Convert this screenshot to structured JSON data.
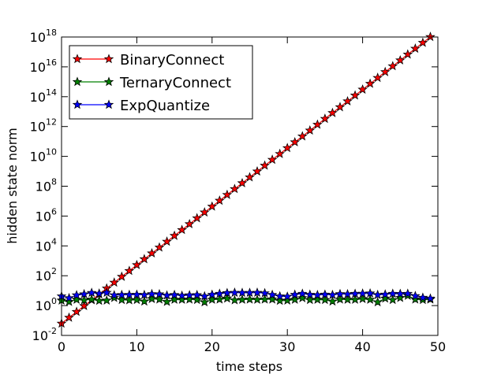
{
  "chart_data": {
    "type": "line",
    "x_label": "time steps",
    "y_label": "hidden state norm",
    "x": [
      0,
      1,
      2,
      3,
      4,
      5,
      6,
      7,
      8,
      9,
      10,
      11,
      12,
      13,
      14,
      15,
      16,
      17,
      18,
      19,
      20,
      21,
      22,
      23,
      24,
      25,
      26,
      27,
      28,
      29,
      30,
      31,
      32,
      33,
      34,
      35,
      36,
      37,
      38,
      39,
      40,
      41,
      42,
      43,
      44,
      45,
      46,
      47,
      48,
      49
    ],
    "series": [
      {
        "name": "BinaryConnect",
        "color": "#ff0000",
        "values": [
          0.063,
          0.156,
          0.384,
          0.946,
          2.33,
          5.75,
          14.2,
          35.0,
          86.3,
          213,
          525,
          1294,
          3192,
          7870,
          19400,
          47900,
          118000,
          291000,
          718000,
          1770000,
          4370000,
          10800000,
          26500000,
          65500000,
          161000000,
          398000000,
          982000000,
          2420000000,
          5970000000,
          14700000000,
          36300000000,
          89500000000,
          221000000000,
          545000000000,
          1340000000000,
          3310000000000,
          8170000000000,
          20100000000000,
          49700000000000,
          122000000000000,
          302000000000000,
          745000000000000,
          1840000000000000,
          4530000000000000,
          11200000000000000,
          27500000000000000,
          67900000000000000,
          167000000000000000,
          413000000000000000,
          1020000000000000000
        ]
      },
      {
        "name": "TernaryConnect",
        "color": "#008000",
        "values": [
          2.2,
          1.8,
          2.5,
          2.3,
          2.6,
          2.1,
          2.2,
          3.3,
          2.4,
          2.3,
          2.4,
          1.9,
          2.8,
          2.6,
          1.8,
          2.5,
          2.5,
          2.6,
          2.4,
          1.7,
          2.5,
          2.6,
          3.0,
          2.3,
          2.5,
          2.6,
          2.5,
          2.6,
          2.6,
          2.1,
          2.2,
          2.5,
          3.2,
          2.4,
          2.5,
          2.4,
          1.9,
          2.6,
          2.5,
          2.5,
          2.8,
          2.5,
          1.7,
          3.0,
          2.4,
          3.3,
          4.6,
          2.6,
          2.4,
          2.6
        ]
      },
      {
        "name": "ExpQuantize",
        "color": "#0000ff",
        "values": [
          4.2,
          3.2,
          5.0,
          5.8,
          7.2,
          6.4,
          7.3,
          5.0,
          5.2,
          5.3,
          5.4,
          5.2,
          6.0,
          5.8,
          4.8,
          5.2,
          4.6,
          5.0,
          5.1,
          4.2,
          5.4,
          6.3,
          7.0,
          7.3,
          7.2,
          7.2,
          7.3,
          6.8,
          5.3,
          4.2,
          4.0,
          5.4,
          6.3,
          5.4,
          5.1,
          5.5,
          5.2,
          6.0,
          5.8,
          6.2,
          6.4,
          6.6,
          5.2,
          5.6,
          6.3,
          6.1,
          6.3,
          4.4,
          3.4,
          3.0
        ]
      }
    ],
    "xlim": [
      0,
      50
    ],
    "xticks": [
      0,
      10,
      20,
      30,
      40,
      50
    ],
    "ylim": [
      0.01,
      1000000000000000000
    ],
    "log_y": true,
    "yticks": [
      {
        "value": 0.01,
        "label": "10^-2"
      },
      {
        "value": 1,
        "label": "10^0"
      },
      {
        "value": 100,
        "label": "10^2"
      },
      {
        "value": 10000,
        "label": "10^4"
      },
      {
        "value": 1000000,
        "label": "10^6"
      },
      {
        "value": 100000000,
        "label": "10^8"
      },
      {
        "value": 10000000000,
        "label": "10^10"
      },
      {
        "value": 1000000000000,
        "label": "10^12"
      },
      {
        "value": 100000000000000,
        "label": "10^14"
      },
      {
        "value": 10000000000000000,
        "label": "10^16"
      },
      {
        "value": 1000000000000000000,
        "label": "10^18"
      }
    ],
    "legend": "upper-left"
  }
}
